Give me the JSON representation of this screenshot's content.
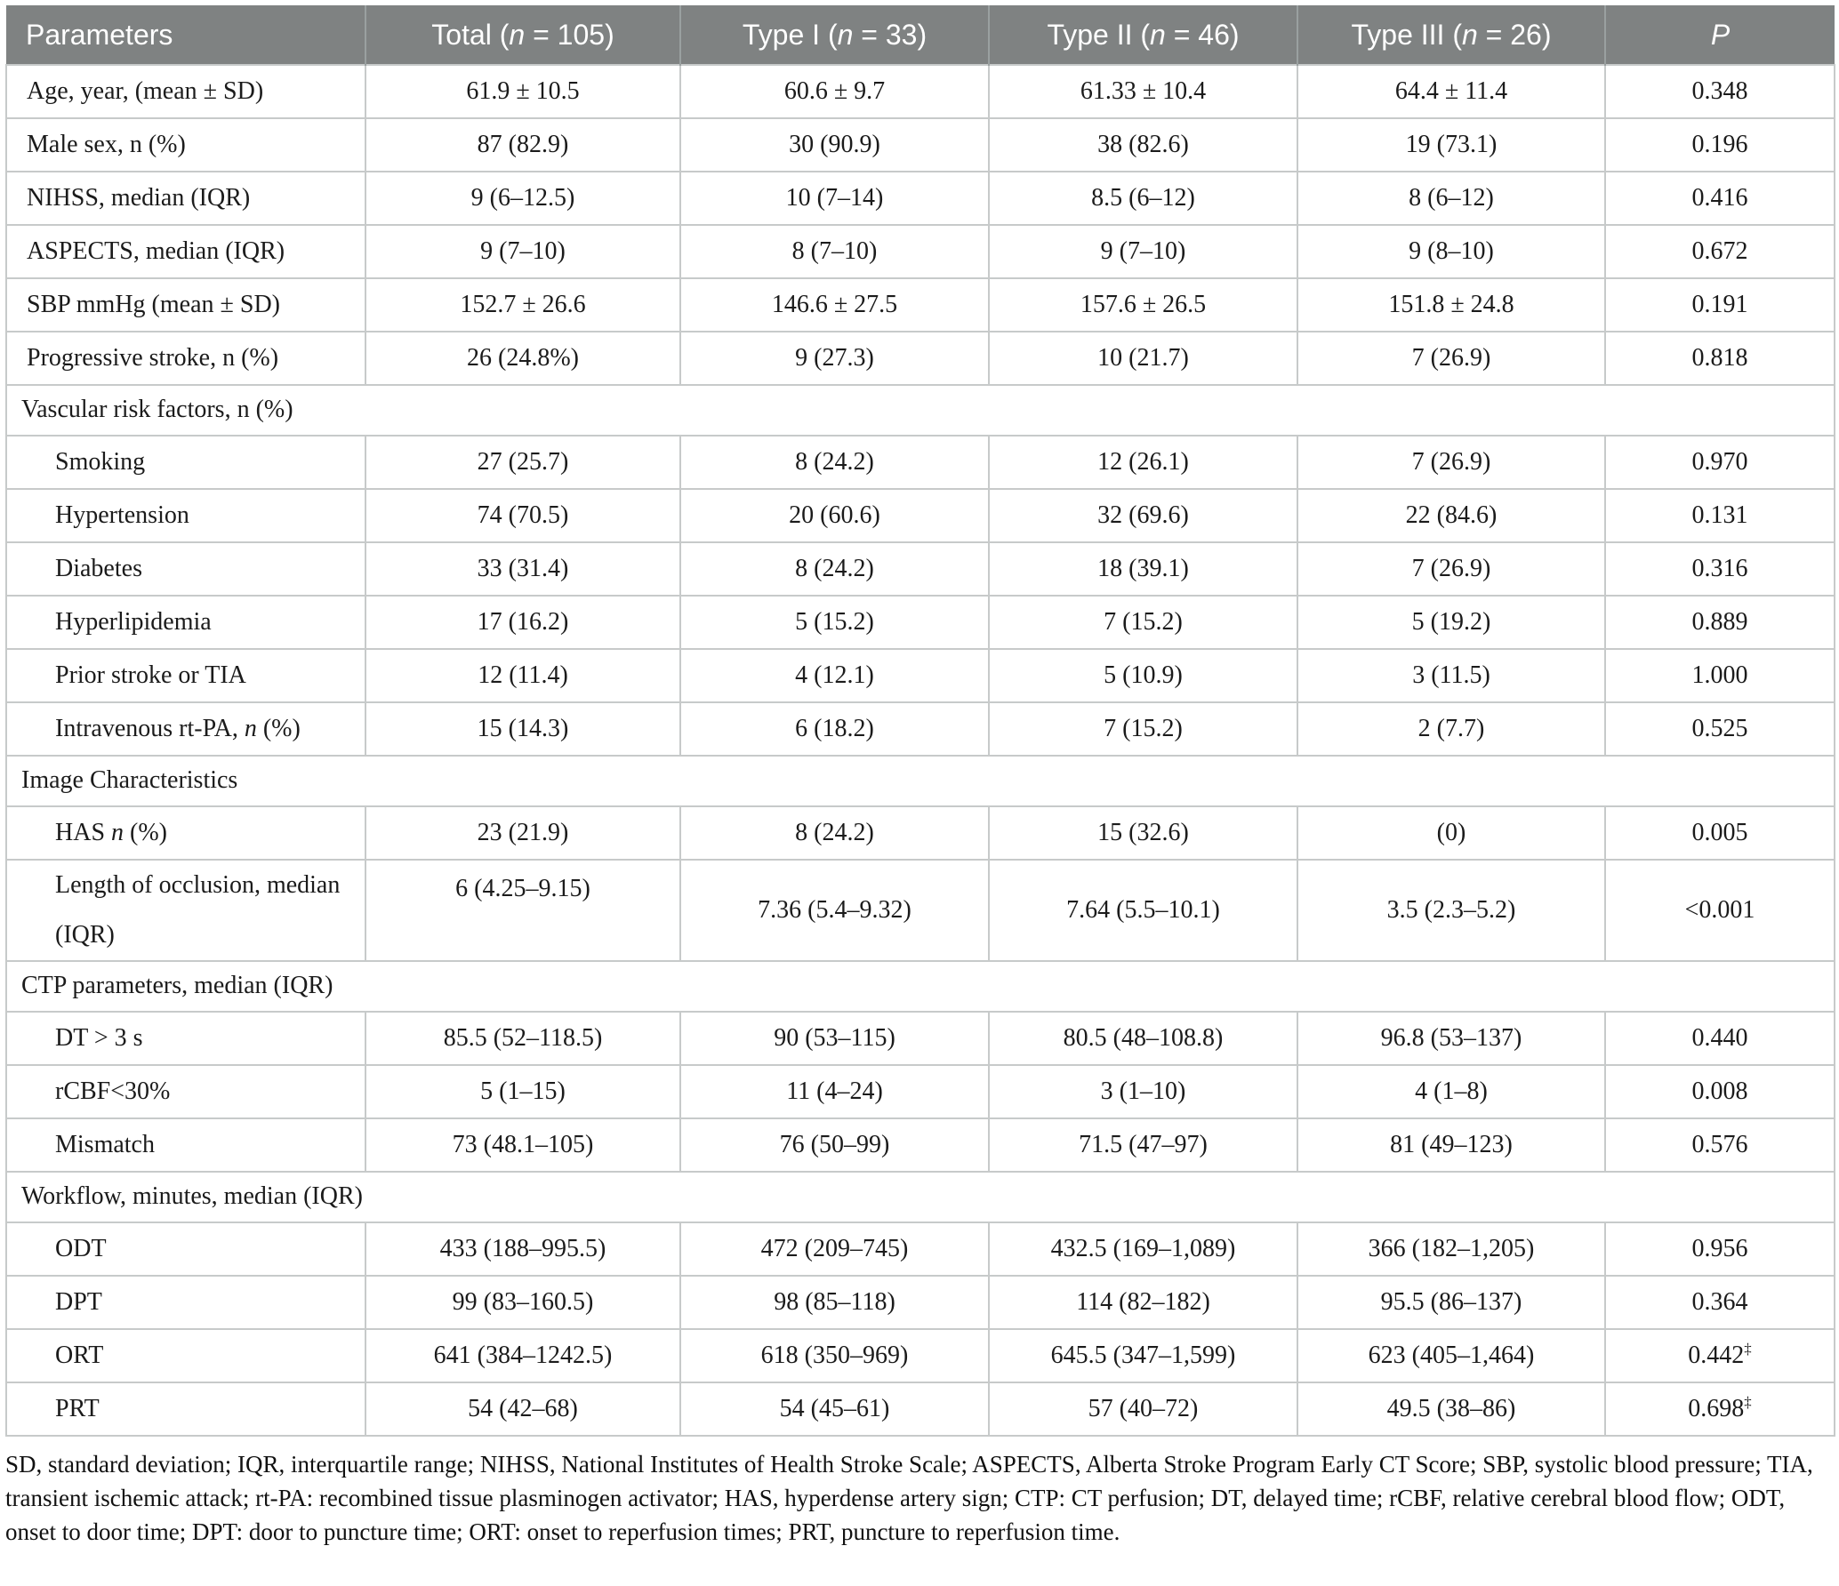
{
  "table": {
    "columns": [
      {
        "label": "Parameters"
      },
      {
        "label": "Total (n = 105)",
        "italic_n": true
      },
      {
        "label": "Type I (n = 33)",
        "italic_n": true
      },
      {
        "label": "Type II (n = 46)",
        "italic_n": true
      },
      {
        "label": "Type III (n = 26)",
        "italic_n": true
      },
      {
        "label": "P",
        "italic": true
      }
    ],
    "rows": [
      {
        "type": "data",
        "indent": 0,
        "label": "Age, year, (mean ± SD)",
        "values": [
          "61.9 ± 10.5",
          "60.6 ± 9.7",
          "61.33 ± 10.4",
          "64.4 ± 11.4",
          "0.348"
        ]
      },
      {
        "type": "data",
        "indent": 0,
        "label": "Male sex, n (%)",
        "values": [
          "87 (82.9)",
          "30 (90.9)",
          "38 (82.6)",
          "19 (73.1)",
          "0.196"
        ]
      },
      {
        "type": "data",
        "indent": 0,
        "label": "NIHSS, median (IQR)",
        "values": [
          "9 (6–12.5)",
          "10 (7–14)",
          "8.5 (6–12)",
          "8 (6–12)",
          "0.416"
        ]
      },
      {
        "type": "data",
        "indent": 0,
        "label": "ASPECTS, median (IQR)",
        "values": [
          "9 (7–10)",
          "8 (7–10)",
          "9 (7–10)",
          "9 (8–10)",
          "0.672"
        ]
      },
      {
        "type": "data",
        "indent": 0,
        "label": "SBP mmHg (mean ± SD)",
        "values": [
          "152.7 ± 26.6",
          "146.6 ± 27.5",
          "157.6 ± 26.5",
          "151.8 ± 24.8",
          "0.191"
        ]
      },
      {
        "type": "data",
        "indent": 0,
        "label": "Progressive stroke, n (%)",
        "values": [
          "26 (24.8%)",
          "9 (27.3)",
          "10 (21.7)",
          "7 (26.9)",
          "0.818"
        ]
      },
      {
        "type": "section",
        "label": "Vascular risk factors, n (%)"
      },
      {
        "type": "data",
        "indent": 1,
        "label": "Smoking",
        "values": [
          "27 (25.7)",
          "8 (24.2)",
          "12 (26.1)",
          "7 (26.9)",
          "0.970"
        ]
      },
      {
        "type": "data",
        "indent": 1,
        "label": "Hypertension",
        "values": [
          "74 (70.5)",
          "20 (60.6)",
          "32 (69.6)",
          "22 (84.6)",
          "0.131"
        ]
      },
      {
        "type": "data",
        "indent": 1,
        "label": "Diabetes",
        "values": [
          "33 (31.4)",
          "8 (24.2)",
          "18 (39.1)",
          "7 (26.9)",
          "0.316"
        ]
      },
      {
        "type": "data",
        "indent": 1,
        "label": "Hyperlipidemia",
        "values": [
          "17 (16.2)",
          "5 (15.2)",
          "7 (15.2)",
          "5 (19.2)",
          "0.889"
        ]
      },
      {
        "type": "data",
        "indent": 1,
        "label": "Prior stroke or TIA",
        "values": [
          "12 (11.4)",
          "4 (12.1)",
          "5 (10.9)",
          "3 (11.5)",
          "1.000"
        ]
      },
      {
        "type": "data",
        "indent": 1,
        "label": "Intravenous rt-PA, n (%)",
        "italic_n": true,
        "values": [
          "15 (14.3)",
          "6 (18.2)",
          "7 (15.2)",
          "2 (7.7)",
          "0.525"
        ]
      },
      {
        "type": "section",
        "label": "Image Characteristics"
      },
      {
        "type": "data",
        "indent": 1,
        "label": "HAS n (%)",
        "italic_n": true,
        "values": [
          "23 (21.9)",
          "8 (24.2)",
          "15 (32.6)",
          "(0)",
          "0.005"
        ]
      },
      {
        "type": "data",
        "indent": 1,
        "label": "Length of occlusion, median (IQR)",
        "tall": true,
        "values": [
          "6 (4.25–9.15)",
          "7.36 (5.4–9.32)",
          "7.64 (5.5–10.1)",
          "3.5 (2.3–5.2)",
          "<0.001"
        ]
      },
      {
        "type": "section",
        "label": "CTP parameters, median (IQR)"
      },
      {
        "type": "data",
        "indent": 1,
        "label": "DT > 3 s",
        "values": [
          "85.5 (52–118.5)",
          "90 (53–115)",
          "80.5 (48–108.8)",
          "96.8 (53–137)",
          "0.440"
        ]
      },
      {
        "type": "data",
        "indent": 1,
        "label": "rCBF<30%",
        "values": [
          "5 (1–15)",
          "11 (4–24)",
          "3 (1–10)",
          "4 (1–8)",
          "0.008"
        ]
      },
      {
        "type": "data",
        "indent": 1,
        "label": "Mismatch",
        "values": [
          "73 (48.1–105)",
          "76 (50–99)",
          "71.5 (47–97)",
          "81 (49–123)",
          "0.576"
        ]
      },
      {
        "type": "section",
        "label": "Workflow, minutes, median (IQR)"
      },
      {
        "type": "data",
        "indent": 1,
        "label": "ODT",
        "values": [
          "433 (188–995.5)",
          "472 (209–745)",
          "432.5 (169–1,089)",
          "366 (182–1,205)",
          "0.956"
        ]
      },
      {
        "type": "data",
        "indent": 1,
        "label": "DPT",
        "values": [
          "99 (83–160.5)",
          "98 (85–118)",
          "114 (82–182)",
          "95.5 (86–137)",
          "0.364"
        ]
      },
      {
        "type": "data",
        "indent": 1,
        "label": "ORT",
        "values": [
          "641 (384–1242.5)",
          "618 (350–969)",
          "645.5 (347–1,599)",
          "623 (405–1,464)",
          "0.442‡"
        ]
      },
      {
        "type": "data",
        "indent": 1,
        "label": "PRT",
        "values": [
          "54 (42–68)",
          "54 (45–61)",
          "57 (40–72)",
          "49.5 (38–86)",
          "0.698‡"
        ]
      }
    ]
  },
  "footnote": "SD, standard deviation; IQR, interquartile range; NIHSS, National Institutes of Health Stroke Scale; ASPECTS, Alberta Stroke Program Early CT Score; SBP, systolic blood pressure; TIA, transient ischemic attack; rt-PA: recombined tissue plasminogen activator; HAS, hyperdense artery sign; CTP: CT perfusion; DT, delayed time; rCBF, relative cerebral blood flow; ODT, onset to door time; DPT: door to puncture time; ORT: onset to reperfusion times; PRT, puncture to reperfusion time.",
  "colors": {
    "header_bg": "#7f8282",
    "header_text": "#ffffff",
    "grid_line": "#c7caca",
    "body_text": "#1b1b1b"
  }
}
